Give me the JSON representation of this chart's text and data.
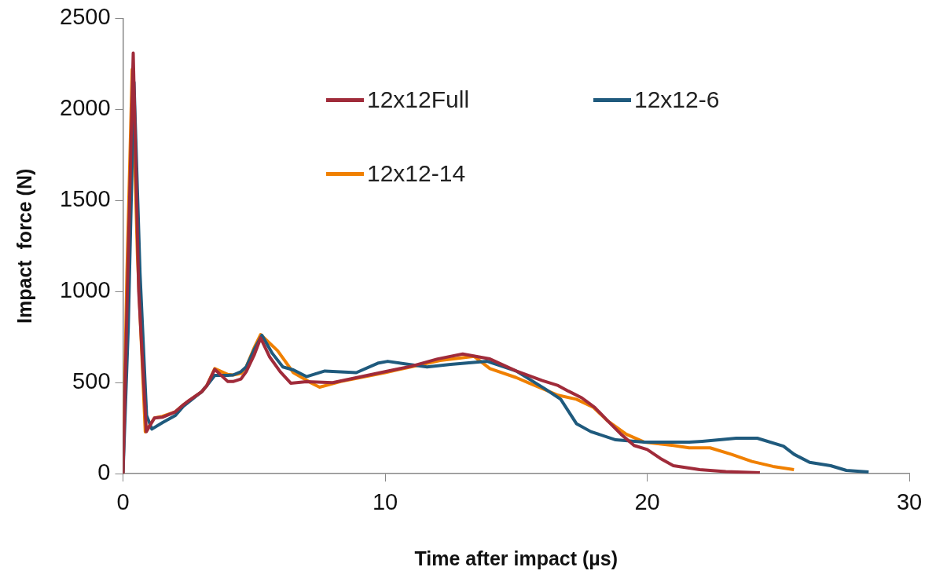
{
  "chart_data": {
    "type": "line",
    "xlabel": "Time after impact (µs)",
    "ylabel": "Impact  force (N)",
    "xlim": [
      0,
      30
    ],
    "xticks": [
      0,
      10,
      20,
      30
    ],
    "ylim": [
      0,
      2500
    ],
    "yticks": [
      0,
      500,
      1000,
      1500,
      2000,
      2500
    ],
    "grid": false,
    "legend": "top",
    "marker": "none",
    "line_style": "solid",
    "series": [
      {
        "name": "12x12Full",
        "color": "#a02b3a",
        "x": [
          0,
          0.2,
          0.39,
          0.6,
          0.89,
          1.2,
          1.5,
          2,
          2.3,
          2.5,
          3,
          3.2,
          3.5,
          4,
          4.2,
          4.5,
          4.7,
          5,
          5.25,
          5.6,
          6,
          6.4,
          7,
          8,
          9,
          10,
          11,
          12,
          12.96,
          14,
          15,
          16,
          16.6,
          17,
          17.5,
          18,
          18.5,
          19,
          19.5,
          20,
          20.5,
          21,
          22,
          23,
          24.3
        ],
        "values": [
          0,
          1200,
          2310,
          1000,
          231,
          306,
          310,
          340,
          378,
          400,
          450,
          484,
          573,
          506,
          506,
          520,
          560,
          650,
          745,
          640,
          560,
          497,
          505,
          500,
          530,
          560,
          590,
          630,
          657,
          630,
          564,
          511,
          484,
          453,
          417,
          364,
          289,
          217,
          155,
          133,
          84,
          44,
          22,
          12,
          5
        ]
      },
      {
        "name": "12x12-6",
        "color": "#1f5a7d",
        "x": [
          0,
          0.2,
          0.42,
          0.65,
          0.9,
          1.1,
          1.5,
          2,
          2.3,
          3,
          3.2,
          3.5,
          4,
          4.2,
          4.5,
          4.7,
          5,
          5.3,
          5.7,
          6.1,
          6.5,
          7,
          7.7,
          8.9,
          9.75,
          10.1,
          11.6,
          12.5,
          13.9,
          15,
          16.1,
          16.7,
          17.3,
          17.85,
          18.8,
          19.9,
          21.6,
          22.1,
          23.4,
          24.2,
          25.2,
          25.6,
          26.2,
          27,
          27.6,
          28.45
        ],
        "values": [
          0,
          800,
          2150,
          1100,
          320,
          245,
          280,
          320,
          370,
          450,
          484,
          540,
          540,
          542,
          560,
          586,
          680,
          760,
          660,
          586,
          570,
          533,
          564,
          555,
          608,
          617,
          586,
          600,
          617,
          564,
          466,
          409,
          275,
          231,
          186,
          173,
          173,
          178,
          195,
          195,
          151,
          107,
          62,
          44,
          18,
          9
        ]
      },
      {
        "name": "12x12-14",
        "color": "#f08000",
        "x": [
          0,
          0.15,
          0.35,
          0.55,
          0.85,
          1.2,
          1.5,
          2,
          2.3,
          3,
          3.2,
          3.5,
          4,
          4.2,
          4.5,
          4.7,
          5,
          5.25,
          5.9,
          6.5,
          7.2,
          7.5,
          8.3,
          10,
          12.1,
          13.4,
          14,
          15,
          15.5,
          16.6,
          17.3,
          17.95,
          18.5,
          19.2,
          19.9,
          21,
          21.6,
          22.4,
          23.2,
          24,
          24.8,
          25.6
        ],
        "values": [
          0,
          1100,
          2220,
          1200,
          230,
          306,
          315,
          340,
          378,
          450,
          484,
          577,
          545,
          542,
          550,
          586,
          690,
          764,
          675,
          555,
          497,
          475,
          506,
          555,
          622,
          644,
          577,
          528,
          497,
          431,
          409,
          364,
          289,
          217,
          173,
          155,
          142,
          142,
          107,
          67,
          40,
          22
        ]
      }
    ]
  }
}
